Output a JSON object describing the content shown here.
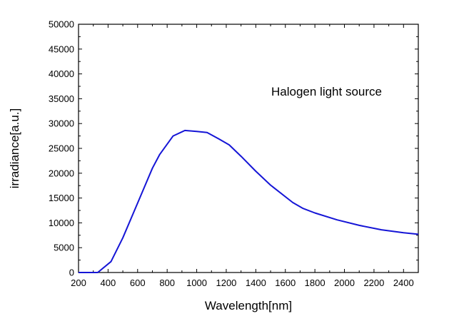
{
  "chart_data": {
    "type": "line",
    "title": "",
    "xlabel": "Wavelength[nm]",
    "ylabel": "irradiance[a.u.]",
    "xlim": [
      200,
      2500
    ],
    "ylim": [
      0,
      50000
    ],
    "x_ticks": [
      200,
      400,
      600,
      800,
      1000,
      1200,
      1400,
      1600,
      1800,
      2000,
      2200,
      2400
    ],
    "y_ticks": [
      0,
      5000,
      10000,
      15000,
      20000,
      25000,
      30000,
      35000,
      40000,
      45000,
      50000
    ],
    "annotation": "Halogen light source",
    "grid": false,
    "series_color": "#1515d6",
    "series": [
      {
        "x": [
          200,
          300,
          330,
          420,
          500,
          600,
          700,
          750,
          840,
          920,
          1000,
          1070,
          1150,
          1220,
          1300,
          1400,
          1500,
          1650,
          1720,
          1800,
          1950,
          2100,
          2250,
          2400,
          2500
        ],
        "y": [
          0,
          0,
          0,
          2200,
          7000,
          14000,
          21000,
          23800,
          27500,
          28600,
          28400,
          28200,
          26900,
          25700,
          23400,
          20400,
          17600,
          14100,
          12900,
          12000,
          10600,
          9500,
          8600,
          8000,
          7700
        ]
      }
    ]
  }
}
